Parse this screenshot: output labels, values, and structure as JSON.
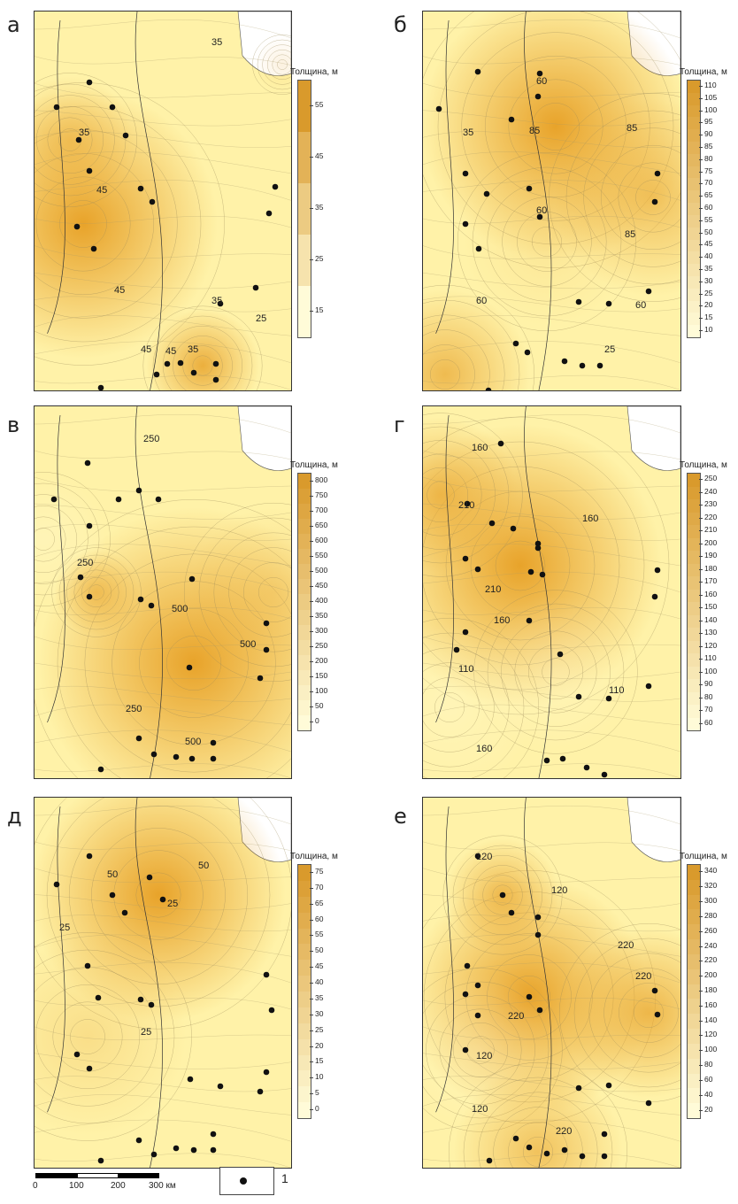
{
  "figure": {
    "panels": [
      {
        "letter": "а",
        "legend_title": "Толщина, м",
        "legend_ticks": [
          "55",
          "45",
          "35",
          "25",
          "15"
        ],
        "contour_labels": [
          "35",
          "35",
          "45",
          "45",
          "45",
          "45",
          "35",
          "35",
          "25"
        ],
        "colors": {
          "low": "#fff7c8",
          "high": "#e8a32a"
        }
      },
      {
        "letter": "б",
        "legend_title": "Толщина, м",
        "legend_ticks": [
          "110",
          "105",
          "100",
          "95",
          "90",
          "85",
          "80",
          "75",
          "70",
          "65",
          "60",
          "55",
          "50",
          "45",
          "40",
          "35",
          "30",
          "25",
          "20",
          "15",
          "10"
        ],
        "contour_labels": [
          "60",
          "35",
          "85",
          "85",
          "60",
          "85",
          "60",
          "60",
          "25"
        ],
        "colors": {
          "low": "#fff7c8",
          "high": "#e8a32a"
        }
      },
      {
        "letter": "в",
        "legend_title": "Толщина, м",
        "legend_ticks": [
          "800",
          "750",
          "700",
          "650",
          "600",
          "550",
          "500",
          "450",
          "400",
          "350",
          "300",
          "250",
          "200",
          "150",
          "100",
          "50",
          "0"
        ],
        "contour_labels": [
          "250",
          "250",
          "500",
          "500",
          "250",
          "500"
        ],
        "colors": {
          "low": "#fff7c8",
          "high": "#e8a32a"
        }
      },
      {
        "letter": "г",
        "legend_title": "Толщина, м",
        "legend_ticks": [
          "250",
          "240",
          "230",
          "220",
          "210",
          "200",
          "190",
          "180",
          "170",
          "160",
          "150",
          "140",
          "130",
          "120",
          "110",
          "100",
          "90",
          "80",
          "70",
          "60"
        ],
        "contour_labels": [
          "160",
          "210",
          "210",
          "160",
          "160",
          "110",
          "110",
          "160"
        ],
        "colors": {
          "low": "#fff7c8",
          "high": "#e8a32a"
        }
      },
      {
        "letter": "д",
        "legend_title": "Толщина, м",
        "legend_ticks": [
          "75",
          "70",
          "65",
          "60",
          "55",
          "50",
          "45",
          "40",
          "35",
          "30",
          "25",
          "20",
          "15",
          "10",
          "5",
          "0"
        ],
        "contour_labels": [
          "50",
          "50",
          "25",
          "25",
          "25"
        ],
        "colors": {
          "low": "#fff7c8",
          "high": "#e8a32a"
        }
      },
      {
        "letter": "е",
        "legend_title": "Толщина, м",
        "legend_ticks": [
          "340",
          "320",
          "300",
          "280",
          "260",
          "240",
          "220",
          "200",
          "180",
          "160",
          "140",
          "120",
          "100",
          "80",
          "60",
          "40",
          "20"
        ],
        "contour_labels": [
          "120",
          "120",
          "220",
          "220",
          "120",
          "220",
          "120",
          "220"
        ],
        "colors": {
          "low": "#fff7c8",
          "high": "#e8a32a"
        }
      }
    ],
    "scale_bar": {
      "labels": [
        "0",
        "100",
        "200",
        "300 км"
      ]
    },
    "legend": {
      "symbol": "well-point",
      "label": "1"
    }
  }
}
